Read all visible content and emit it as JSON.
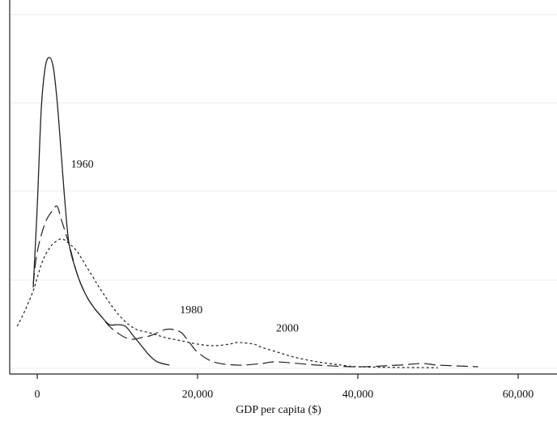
{
  "chart_data": {
    "type": "line",
    "title": "",
    "xlabel": "GDP per capita ($)",
    "ylabel": "",
    "xlim": [
      -2500,
      65000
    ],
    "ylim": [
      0,
      1.0
    ],
    "grid": true,
    "x_ticks": [
      0,
      20000,
      40000,
      60000
    ],
    "x_tick_labels": [
      "0",
      "20,000",
      "40,000",
      "60,000"
    ],
    "series": [
      {
        "name": "1960",
        "style": "solid",
        "x": [
          -500,
          0,
          500,
          1000,
          1500,
          2000,
          2500,
          3000,
          3500,
          4000,
          5000,
          6000,
          7000,
          8000,
          9000,
          10000,
          11000,
          12000,
          13000,
          14000,
          15000,
          16500
        ],
        "y": [
          0.25,
          0.5,
          0.8,
          0.93,
          0.96,
          0.93,
          0.82,
          0.66,
          0.5,
          0.38,
          0.29,
          0.23,
          0.19,
          0.16,
          0.135,
          0.135,
          0.13,
          0.1,
          0.07,
          0.04,
          0.02,
          0.01
        ]
      },
      {
        "name": "1980",
        "style": "long-dash",
        "x": [
          -500,
          0,
          1000,
          2000,
          2500,
          3000,
          4000,
          5000,
          6000,
          7000,
          8000,
          9000,
          10000,
          11000,
          12000,
          13000,
          14000,
          15000,
          16000,
          17000,
          18000,
          19000,
          20000,
          22000,
          25000,
          28000,
          30000,
          35000,
          40000,
          45000,
          48000,
          50000,
          55000
        ],
        "y": [
          0.26,
          0.36,
          0.45,
          0.49,
          0.5,
          0.46,
          0.38,
          0.29,
          0.23,
          0.19,
          0.16,
          0.13,
          0.11,
          0.095,
          0.09,
          0.095,
          0.1,
          0.11,
          0.12,
          0.12,
          0.11,
          0.08,
          0.05,
          0.02,
          0.01,
          0.015,
          0.02,
          0.01,
          0.005,
          0.01,
          0.015,
          0.01,
          0.005
        ]
      },
      {
        "name": "2000",
        "style": "short-dash",
        "x": [
          -2500,
          -1500,
          -500,
          0,
          500,
          1000,
          1500,
          2000,
          3000,
          4000,
          5000,
          6000,
          7000,
          8000,
          10000,
          12000,
          14000,
          16000,
          18000,
          20000,
          22000,
          24000,
          25000,
          27000,
          28000,
          30000,
          32000,
          35000,
          38000,
          40000,
          45000,
          50000
        ],
        "y": [
          0.13,
          0.18,
          0.24,
          0.28,
          0.32,
          0.35,
          0.37,
          0.385,
          0.4,
          0.385,
          0.36,
          0.32,
          0.28,
          0.24,
          0.17,
          0.125,
          0.11,
          0.095,
          0.085,
          0.075,
          0.07,
          0.075,
          0.08,
          0.075,
          0.065,
          0.05,
          0.035,
          0.02,
          0.01,
          0.005,
          0.003,
          0.002
        ]
      }
    ],
    "annotations": [
      {
        "text": "1960",
        "x": 4200,
        "y": 0.62
      },
      {
        "text": "1980",
        "x": 17800,
        "y": 0.17
      },
      {
        "text": "2000",
        "x": 29800,
        "y": 0.114
      }
    ]
  }
}
